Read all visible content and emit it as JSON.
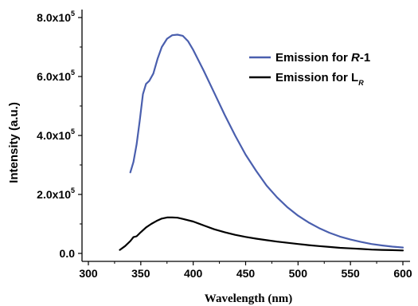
{
  "chart_data": {
    "type": "line",
    "title": "",
    "xlabel": "Wavelength (nm)",
    "ylabel": "Intensity (a.u.)",
    "xlim": [
      300,
      600
    ],
    "ylim": [
      0,
      800000
    ],
    "x_ticks": [
      300,
      350,
      400,
      450,
      500,
      550,
      600
    ],
    "y_ticks": [
      {
        "mantissa": "0.0",
        "exp": ""
      },
      {
        "mantissa": "2.0x10",
        "exp": "5"
      },
      {
        "mantissa": "4.0x10",
        "exp": "5"
      },
      {
        "mantissa": "6.0x10",
        "exp": "5"
      },
      {
        "mantissa": "8.0x10",
        "exp": "5"
      }
    ],
    "legend_position": "top-right",
    "grid": false,
    "series": [
      {
        "name": "Emission for R-1",
        "legend_prefix": "Emission for ",
        "legend_italic": "R",
        "legend_suffix": "-1",
        "color": "#4a5fae",
        "points": [
          [
            340,
            275000
          ],
          [
            343,
            310000
          ],
          [
            346,
            370000
          ],
          [
            349,
            450000
          ],
          [
            352,
            540000
          ],
          [
            355,
            575000
          ],
          [
            358,
            585000
          ],
          [
            362,
            610000
          ],
          [
            366,
            660000
          ],
          [
            370,
            700000
          ],
          [
            375,
            728000
          ],
          [
            380,
            740000
          ],
          [
            385,
            742000
          ],
          [
            390,
            738000
          ],
          [
            395,
            720000
          ],
          [
            400,
            690000
          ],
          [
            410,
            620000
          ],
          [
            420,
            545000
          ],
          [
            430,
            470000
          ],
          [
            440,
            400000
          ],
          [
            450,
            335000
          ],
          [
            460,
            280000
          ],
          [
            470,
            230000
          ],
          [
            480,
            190000
          ],
          [
            490,
            156000
          ],
          [
            500,
            128000
          ],
          [
            510,
            105000
          ],
          [
            520,
            86000
          ],
          [
            530,
            70000
          ],
          [
            540,
            57000
          ],
          [
            550,
            47000
          ],
          [
            560,
            39000
          ],
          [
            570,
            32000
          ],
          [
            580,
            27000
          ],
          [
            590,
            23000
          ],
          [
            600,
            20000
          ]
        ]
      },
      {
        "name": "Emission for LR",
        "legend_prefix": "Emission for L",
        "legend_sub": "R",
        "color": "#000000",
        "points": [
          [
            330,
            12000
          ],
          [
            335,
            25000
          ],
          [
            340,
            42000
          ],
          [
            343,
            55000
          ],
          [
            346,
            58000
          ],
          [
            350,
            72000
          ],
          [
            355,
            88000
          ],
          [
            360,
            100000
          ],
          [
            365,
            110000
          ],
          [
            370,
            118000
          ],
          [
            375,
            122000
          ],
          [
            380,
            122000
          ],
          [
            385,
            121000
          ],
          [
            390,
            117000
          ],
          [
            400,
            108000
          ],
          [
            410,
            95000
          ],
          [
            420,
            82000
          ],
          [
            430,
            72000
          ],
          [
            440,
            63000
          ],
          [
            450,
            56000
          ],
          [
            460,
            50000
          ],
          [
            470,
            45000
          ],
          [
            480,
            40000
          ],
          [
            490,
            36000
          ],
          [
            500,
            32000
          ],
          [
            510,
            28000
          ],
          [
            520,
            25000
          ],
          [
            530,
            22000
          ],
          [
            540,
            19000
          ],
          [
            550,
            17000
          ],
          [
            560,
            15000
          ],
          [
            570,
            13000
          ],
          [
            580,
            12000
          ],
          [
            590,
            11000
          ],
          [
            600,
            10000
          ]
        ]
      }
    ]
  }
}
